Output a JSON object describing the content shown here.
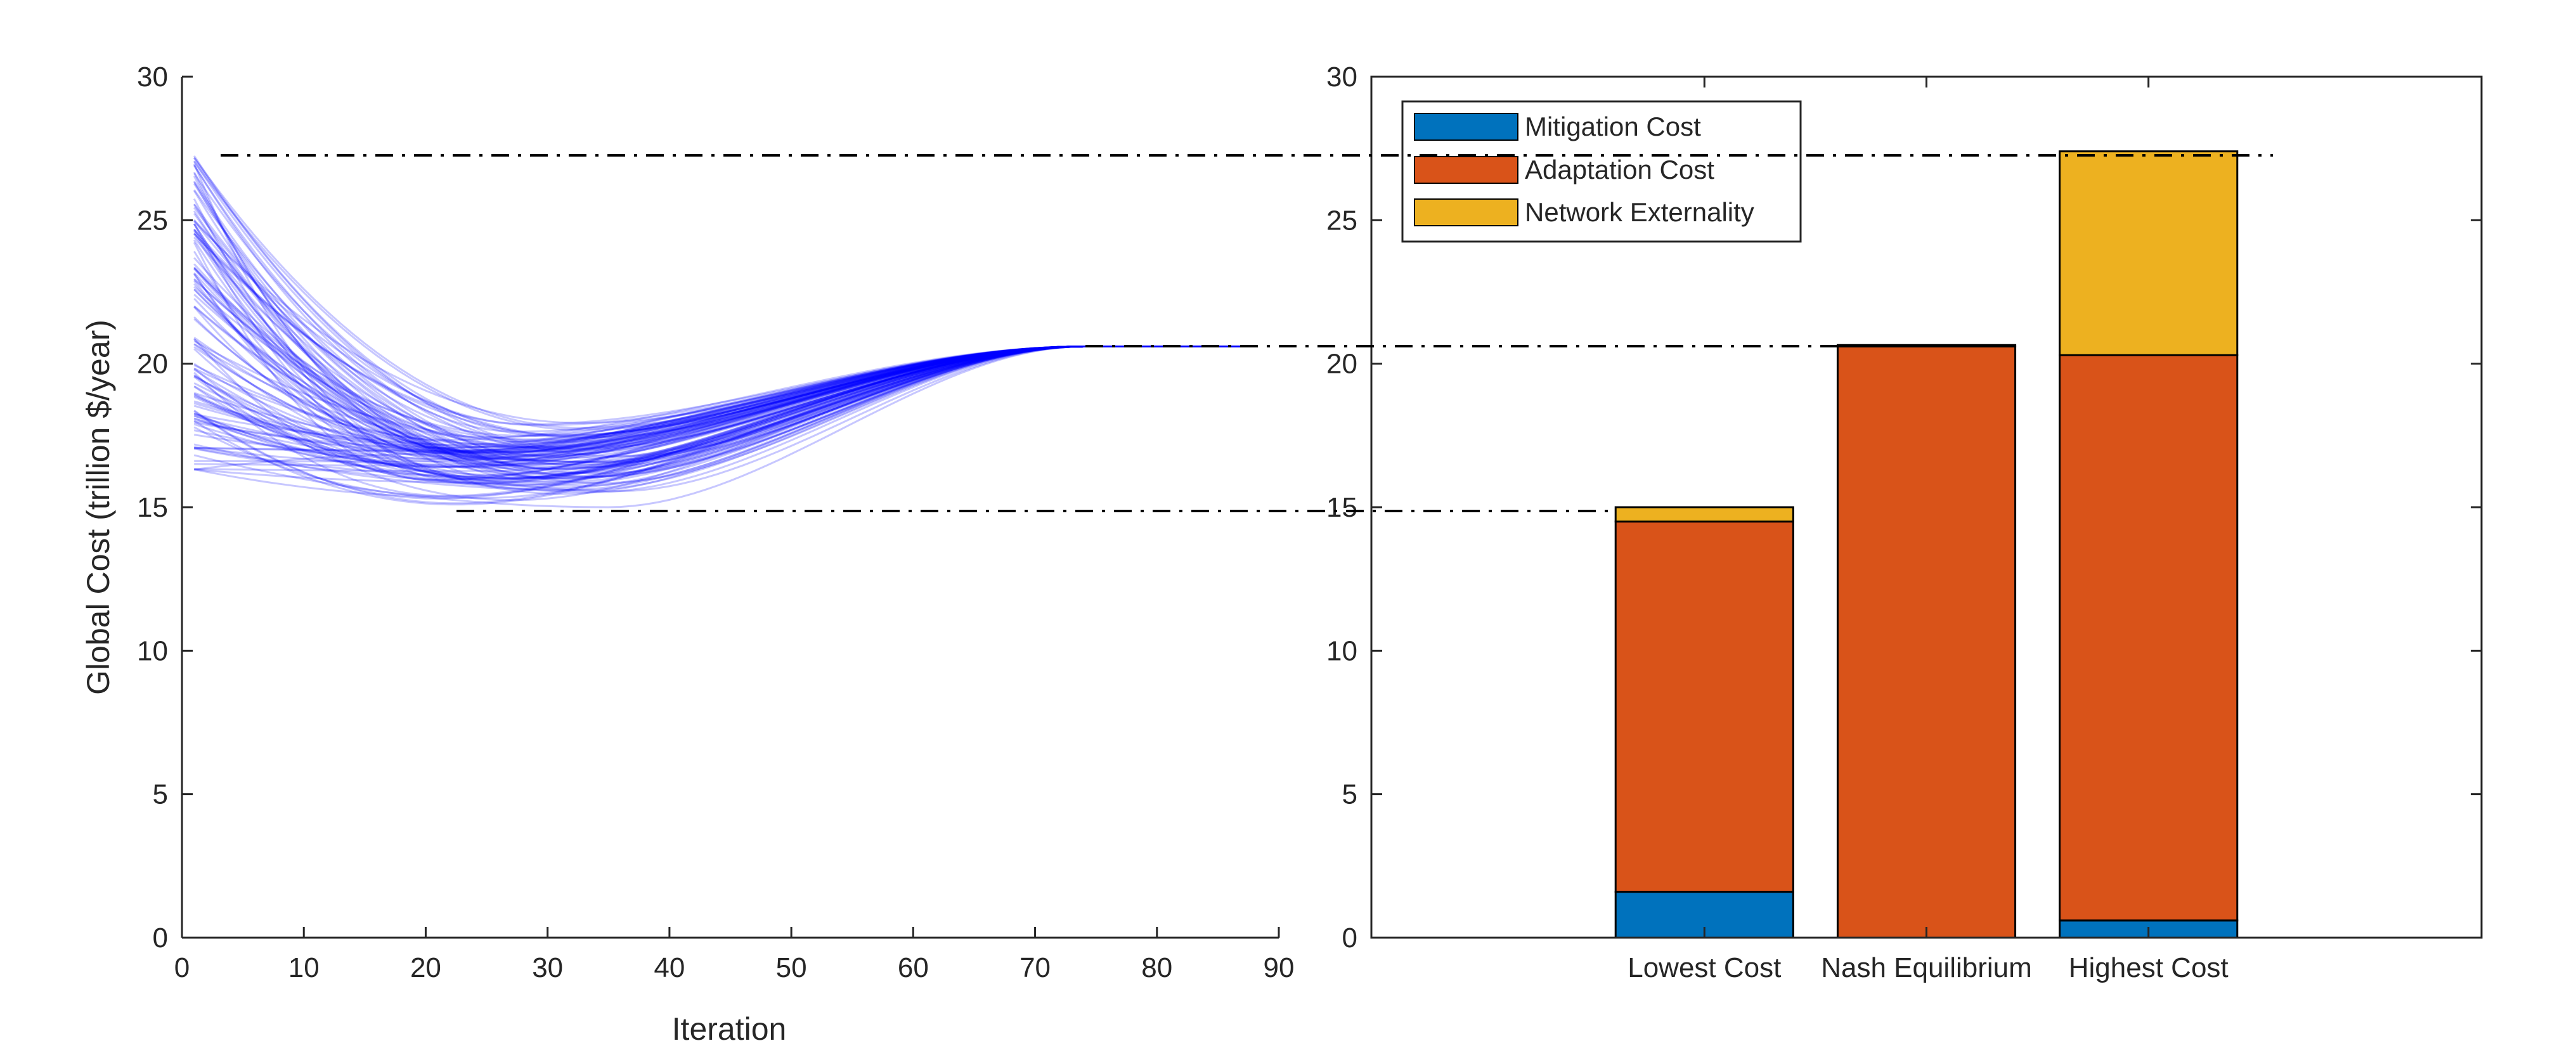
{
  "chart_data": [
    {
      "type": "line",
      "xlabel": "Iteration",
      "ylabel": "Global Cost (trillion $/year)",
      "xlim": [
        0,
        90
      ],
      "ylim": [
        0,
        30
      ],
      "xticks": [
        "0",
        "10",
        "20",
        "30",
        "40",
        "50",
        "60",
        "70",
        "80",
        "90"
      ],
      "yticks": [
        "0",
        "5",
        "10",
        "15",
        "20",
        "25",
        "30"
      ],
      "grid": false,
      "series_color": "#0000ff",
      "series_count": 120,
      "x_range": [
        1,
        87
      ],
      "start_value_range": [
        16.3,
        27.3
      ],
      "converged_value": 20.6,
      "converged_at_iteration": 74,
      "trough_range": [
        15.0,
        18.5
      ],
      "reference_lines": [
        27.3,
        20.6,
        15.0
      ]
    },
    {
      "type": "bar",
      "stacked": true,
      "categories": [
        "Lowest Cost",
        "Nash Equilibrium",
        "Highest Cost"
      ],
      "series": [
        {
          "name": "Mitigation Cost",
          "color": "#0072bd",
          "values": [
            1.6,
            0.0,
            0.6
          ]
        },
        {
          "name": "Adaptation Cost",
          "color": "#d95319",
          "values": [
            12.9,
            20.6,
            19.7
          ]
        },
        {
          "name": "Network Externality",
          "color": "#edb120",
          "values": [
            0.5,
            0.05,
            7.1
          ]
        }
      ],
      "ylim": [
        0,
        30
      ],
      "yticks": [
        "0",
        "5",
        "10",
        "15",
        "20",
        "25",
        "30"
      ],
      "legend_position": "top-left",
      "grid": false
    }
  ]
}
